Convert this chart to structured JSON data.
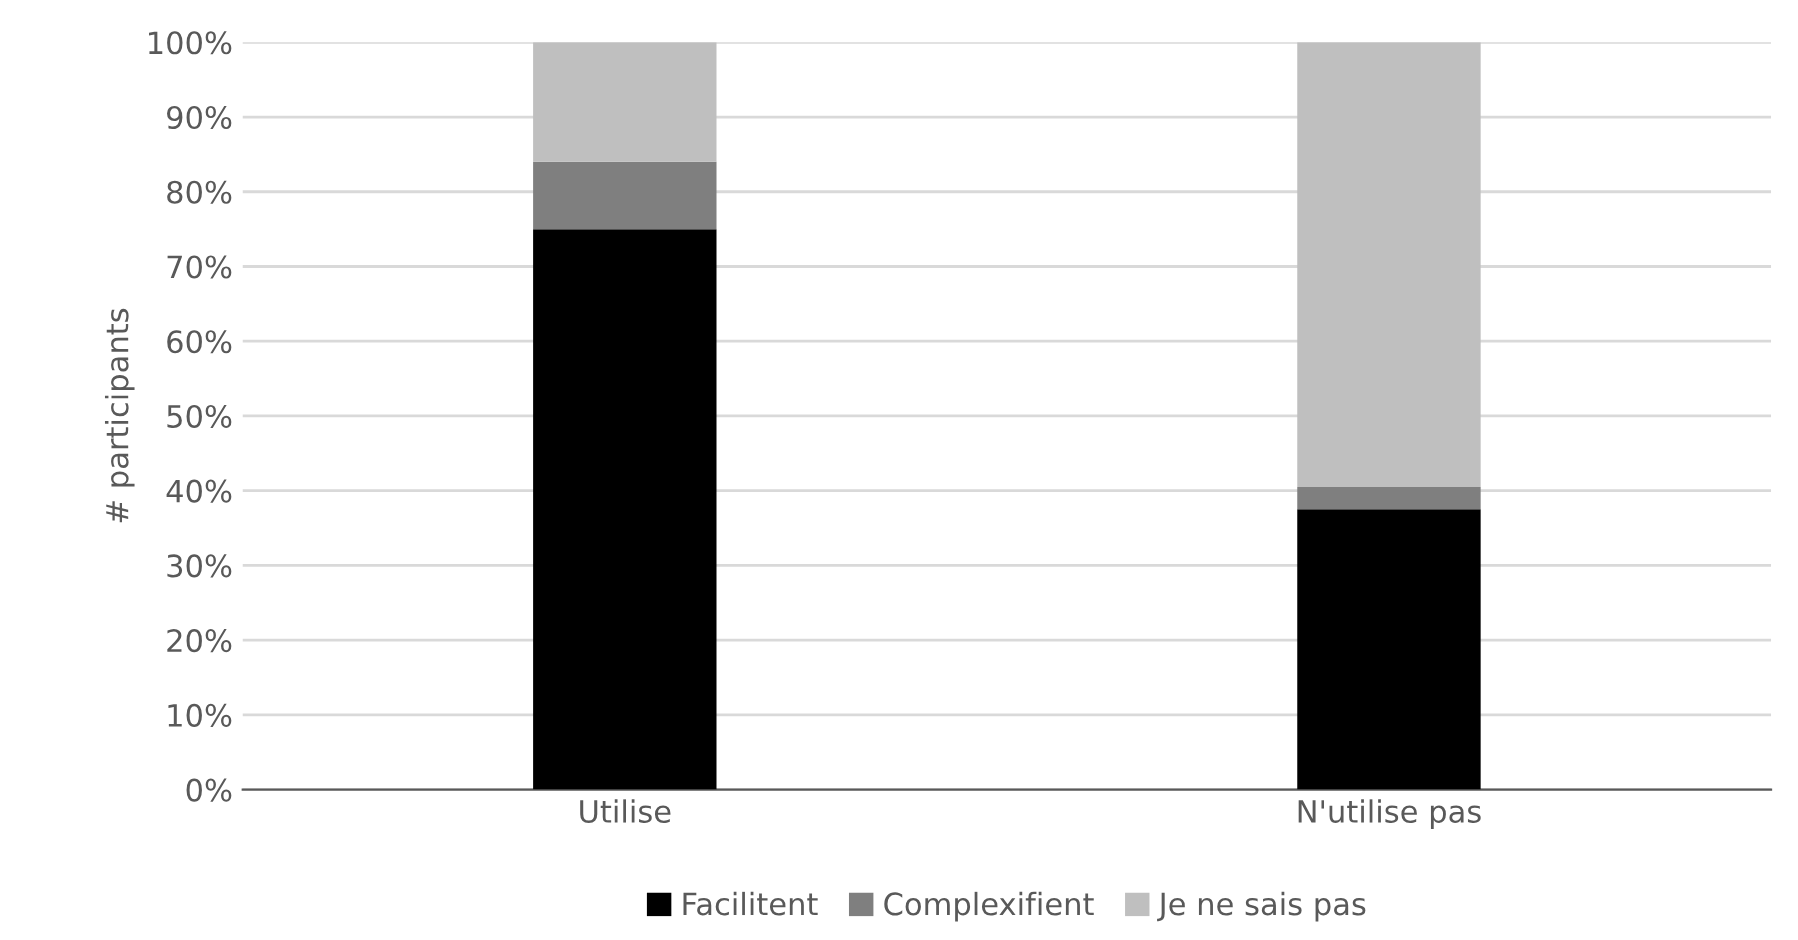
{
  "chart_data": {
    "type": "bar",
    "stacked": true,
    "ylabel": "# participants",
    "categories": [
      "Utilise",
      "N'utilise pas"
    ],
    "series": [
      {
        "name": "Facilitent",
        "color": "#000000",
        "values": [
          75,
          37.5
        ]
      },
      {
        "name": "Complexifient",
        "color": "#7f7f7f",
        "values": [
          9,
          3
        ]
      },
      {
        "name": "Je ne sais pas",
        "color": "#bfbfbf",
        "values": [
          16,
          59.5
        ]
      }
    ],
    "ylim": [
      0,
      100
    ],
    "yticks": [
      {
        "value": 0,
        "label": "0%"
      },
      {
        "value": 10,
        "label": "10%"
      },
      {
        "value": 20,
        "label": "20%"
      },
      {
        "value": 30,
        "label": "30%"
      },
      {
        "value": 40,
        "label": "40%"
      },
      {
        "value": 50,
        "label": "50%"
      },
      {
        "value": 60,
        "label": "60%"
      },
      {
        "value": 70,
        "label": "70%"
      },
      {
        "value": 80,
        "label": "80%"
      },
      {
        "value": 90,
        "label": "90%"
      },
      {
        "value": 100,
        "label": "100%"
      }
    ],
    "grid": "y",
    "legend": "bottom"
  }
}
